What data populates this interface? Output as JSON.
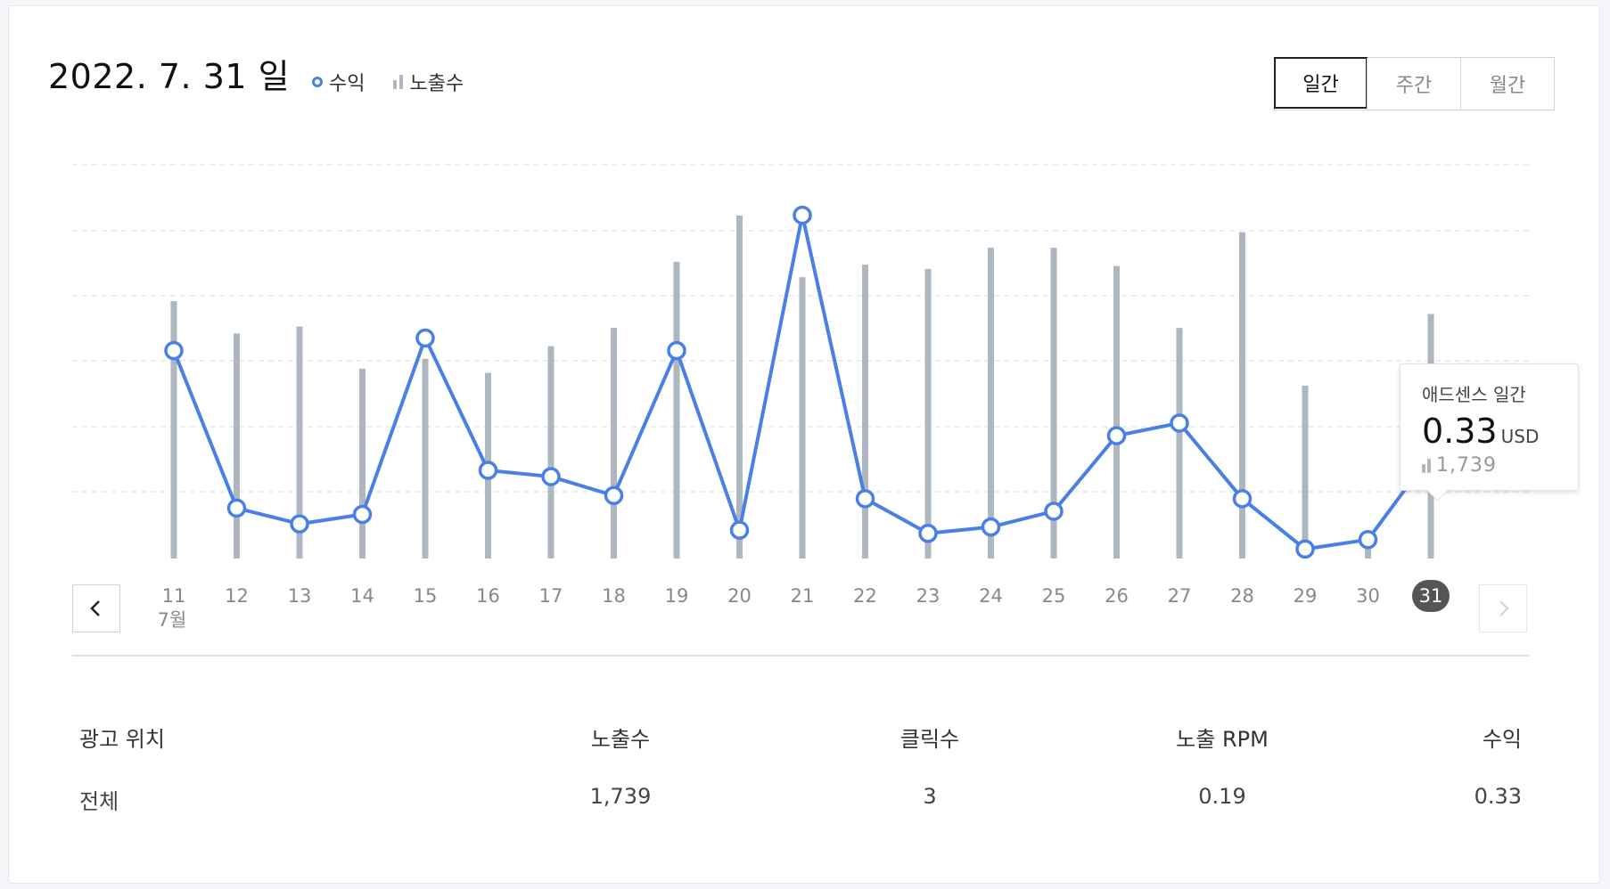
{
  "title": "2022. 7. 31 일",
  "legend": {
    "revenue": "수익",
    "impressions": "노출수"
  },
  "period_tabs": [
    {
      "label": "일간",
      "active": true
    },
    {
      "label": "주간",
      "active": false
    },
    {
      "label": "월간",
      "active": false
    }
  ],
  "month_label": "7월",
  "tooltip": {
    "title": "애드센스 일간",
    "value": "0.33",
    "unit": "USD",
    "impressions": "1,739"
  },
  "colors": {
    "revenue_line": "#4a80e6",
    "impression_bar": "#aeb6c0",
    "selected_day": "#555555"
  },
  "chart_data": {
    "type": "line",
    "categories": [
      "11",
      "12",
      "13",
      "14",
      "15",
      "16",
      "17",
      "18",
      "19",
      "20",
      "21",
      "22",
      "23",
      "24",
      "25",
      "26",
      "27",
      "28",
      "29",
      "30",
      "31"
    ],
    "series": [
      {
        "name": "수익",
        "kind": "line",
        "values": [
          0.66,
          0.16,
          0.11,
          0.14,
          0.7,
          0.28,
          0.26,
          0.2,
          0.66,
          0.09,
          1.09,
          0.19,
          0.08,
          0.1,
          0.15,
          0.39,
          0.43,
          0.19,
          0.03,
          0.06,
          0.33
        ]
      },
      {
        "name": "노출수",
        "kind": "bar",
        "values": [
          1830,
          1600,
          1650,
          1350,
          1420,
          1320,
          1510,
          1640,
          2110,
          2440,
          2000,
          2090,
          2060,
          2210,
          2210,
          2080,
          1640,
          2320,
          1230,
          160,
          1739
        ]
      }
    ],
    "selected_index": 20,
    "grid": true,
    "legend_position": "top-left"
  },
  "table": {
    "headers": [
      "광고 위치",
      "노출수",
      "클릭수",
      "노출 RPM",
      "수익"
    ],
    "rows": [
      [
        "전체",
        "1,739",
        "3",
        "0.19",
        "0.33"
      ]
    ]
  }
}
